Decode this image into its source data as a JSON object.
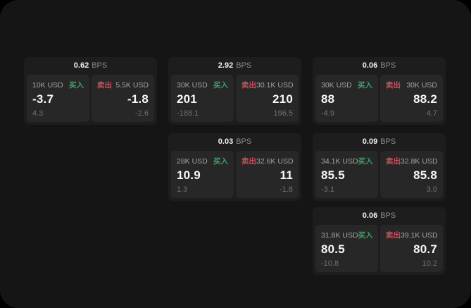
{
  "labels": {
    "bps_unit": "BPS",
    "buy": "买入",
    "sell": "卖出"
  },
  "colors": {
    "buy_green": "#3fa167",
    "sell_red": "#c4505f",
    "page_bg": "#000000",
    "frame_bg": "#151515",
    "card_bg": "#1d1d1d",
    "panel_bg": "#272727"
  },
  "cards": [
    {
      "bps": "0.62",
      "buy": {
        "amount": "10K USD",
        "price": "-3.7",
        "change": "4.3"
      },
      "sell": {
        "amount": "5.5K USD",
        "price": "-1.8",
        "change": "-2.6"
      }
    },
    {
      "bps": "2.92",
      "buy": {
        "amount": "30K USD",
        "price": "201",
        "change": "-188.1"
      },
      "sell": {
        "amount": "30.1K USD",
        "price": "210",
        "change": "196.5"
      }
    },
    {
      "bps": "0.06",
      "buy": {
        "amount": "30K USD",
        "price": "88",
        "change": "-4.9"
      },
      "sell": {
        "amount": "30K USD",
        "price": "88.2",
        "change": "4.7"
      }
    },
    {
      "bps": "0.03",
      "buy": {
        "amount": "28K USD",
        "price": "10.9",
        "change": "1.3"
      },
      "sell": {
        "amount": "32.6K USD",
        "price": "11",
        "change": "-1.8"
      }
    },
    {
      "bps": "0.09",
      "buy": {
        "amount": "34.1K USD",
        "price": "85.5",
        "change": "-3.1"
      },
      "sell": {
        "amount": "32.8K USD",
        "price": "85.8",
        "change": "3.0"
      }
    },
    {
      "bps": "0.06",
      "buy": {
        "amount": "31.8K USD",
        "price": "80.5",
        "change": "-10.8"
      },
      "sell": {
        "amount": "39.1K USD",
        "price": "80.7",
        "change": "10.2"
      }
    }
  ]
}
